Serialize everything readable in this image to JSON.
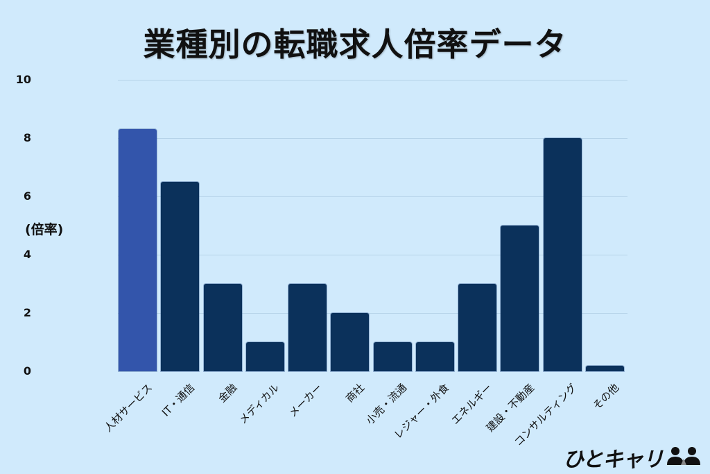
{
  "title": "業種別の転職求人倍率データ",
  "ylabel": "(倍率)",
  "logo": {
    "text": "ひとキャリ",
    "icon": "two-people-icon"
  },
  "colors": {
    "background": "#d0eafc",
    "bar": "#0b315b",
    "bar_highlight": "#3355ab",
    "gridline": "#b6d3e9"
  },
  "yticks": [
    "10",
    "8",
    "6",
    "4",
    "2",
    "0"
  ],
  "chart_data": {
    "type": "bar",
    "title": "業種別の転職求人倍率データ",
    "xlabel": "",
    "ylabel": "(倍率)",
    "ylim": [
      0,
      10
    ],
    "yticks": [
      0,
      2,
      4,
      6,
      8,
      10
    ],
    "grid": true,
    "legend": "none",
    "categories": [
      "人材サービス",
      "IT・通信",
      "金融",
      "メディカル",
      "メーカー",
      "商社",
      "小売・流通",
      "レジャー・外食",
      "エネルギー",
      "建設・不動産",
      "コンサルティング",
      "その他"
    ],
    "values": [
      8.3,
      6.5,
      3.0,
      1.0,
      3.0,
      2.0,
      1.0,
      1.0,
      3.0,
      5.0,
      8.0,
      0.2
    ],
    "highlight_index": 0
  }
}
